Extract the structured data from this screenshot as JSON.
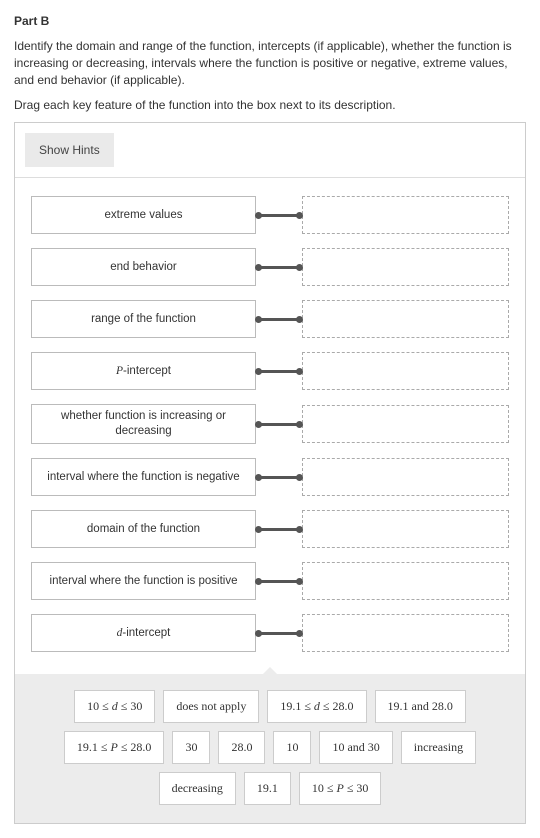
{
  "partTitle": "Part B",
  "instructions": "Identify the domain and range of the function, intercepts (if applicable), whether the function is increasing or decreasing, intervals where the function is positive or negative, extreme values, and end behavior (if applicable).",
  "dragInstruction": "Drag each key feature of the function into the box next to its description.",
  "showHintsLabel": "Show Hints",
  "rows": [
    {
      "label": "extreme values"
    },
    {
      "label": "end behavior"
    },
    {
      "label": "range of the function"
    },
    {
      "label": "P-intercept",
      "italicFirst": "P",
      "rest": "-intercept"
    },
    {
      "label": "whether function is increasing or decreasing"
    },
    {
      "label": "interval where the function is negative"
    },
    {
      "label": "domain of the function"
    },
    {
      "label": "interval where the function is positive"
    },
    {
      "label": "d-intercept",
      "italicFirst": "d",
      "rest": "-intercept"
    }
  ],
  "chips": [
    {
      "html": "10 ≤ <i>d</i> ≤ 30"
    },
    {
      "html": "does not apply"
    },
    {
      "html": "19.1 ≤ <i>d</i> ≤ 28.0"
    },
    {
      "html": "19.1 and 28.0"
    },
    {
      "html": "19.1 ≤ <i>P</i> ≤ 28.0"
    },
    {
      "html": "30"
    },
    {
      "html": "28.0"
    },
    {
      "html": "10"
    },
    {
      "html": "10 and 30"
    },
    {
      "html": "increasing"
    },
    {
      "html": "decreasing"
    },
    {
      "html": "19.1"
    },
    {
      "html": "10 ≤ <i>P</i> ≤ 30"
    }
  ]
}
